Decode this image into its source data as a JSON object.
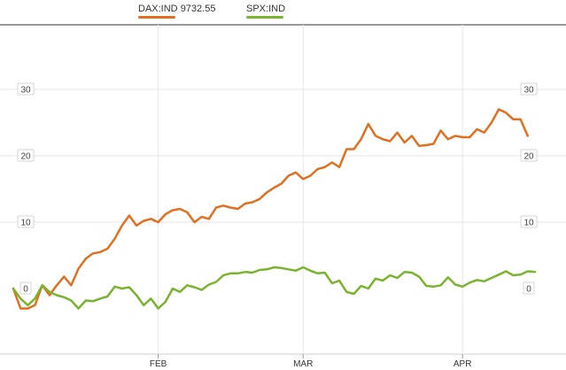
{
  "legend": [
    {
      "name": "DAX:IND",
      "value": "9732.55",
      "color": "#e07020"
    },
    {
      "name": "SPX:IND",
      "value": "",
      "color": "#7ab32e"
    }
  ],
  "chart_data": {
    "type": "line",
    "x_ticks": [
      {
        "label": "FEB",
        "index": 20
      },
      {
        "label": "MAR",
        "index": 40
      },
      {
        "label": "APR",
        "index": 62
      }
    ],
    "y_ticks": [
      0,
      10,
      20,
      30
    ],
    "ylim": [
      -10,
      40
    ],
    "grid": true,
    "series": [
      {
        "name": "DAX:IND",
        "color": "#e07020",
        "values": [
          0,
          -3,
          -3,
          -2.5,
          0.5,
          -1,
          0.5,
          1.8,
          0.5,
          3,
          4.5,
          5.3,
          5.5,
          6,
          7.5,
          9.5,
          11,
          9.5,
          10.2,
          10.5,
          10,
          11.2,
          11.8,
          12,
          11.5,
          10,
          10.8,
          10.5,
          12.2,
          12.5,
          12.2,
          12,
          12.8,
          13,
          13.5,
          14.5,
          15.2,
          15.8,
          17,
          17.5,
          16.5,
          17,
          18,
          18.3,
          19,
          18.3,
          21,
          21,
          22.5,
          24.8,
          23,
          22.5,
          22.2,
          23.5,
          22,
          23,
          21.5,
          21.6,
          21.8,
          23.8,
          22.5,
          23,
          22.8,
          22.8,
          24,
          23.5,
          25,
          27,
          26.5,
          25.5,
          25.5,
          23
        ]
      },
      {
        "name": "SPX:IND",
        "color": "#7ab32e",
        "values": [
          0,
          -1.5,
          -2.5,
          -1.5,
          0.5,
          -0.5,
          -1,
          -1.3,
          -1.8,
          -3,
          -1.8,
          -1.9,
          -1.5,
          -1.2,
          0.3,
          0,
          0.2,
          -1,
          -2.5,
          -1.5,
          -3,
          -2,
          0,
          -0.5,
          0.5,
          0.2,
          -0.2,
          0.6,
          1,
          2,
          2.3,
          2.3,
          2.5,
          2.4,
          2.8,
          2.9,
          3.2,
          3.1,
          2.9,
          2.7,
          3.2,
          2.7,
          2.3,
          2.4,
          0.8,
          1.2,
          -0.5,
          -0.8,
          0.4,
          0,
          1.5,
          1.2,
          2,
          1.6,
          2.5,
          2.4,
          1.8,
          0.4,
          0.3,
          0.5,
          1.7,
          0.6,
          0.3,
          0.9,
          1.3,
          1.1,
          1.6,
          2.1,
          2.6,
          2,
          2.1,
          2.6,
          2.5
        ]
      }
    ]
  }
}
